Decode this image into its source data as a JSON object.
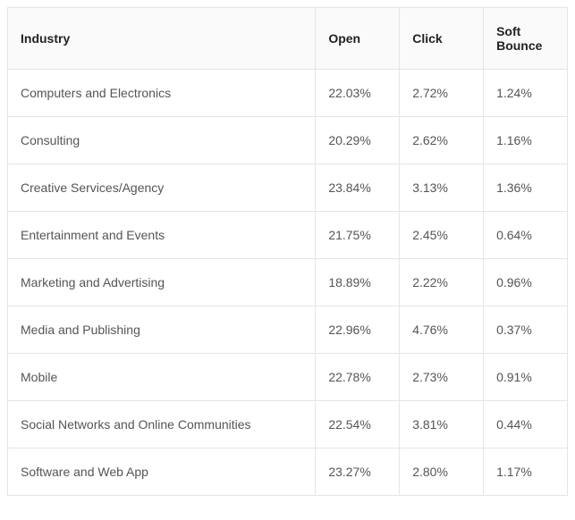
{
  "table": {
    "columns": [
      "Industry",
      "Open",
      "Click",
      "Soft Bounce"
    ],
    "rows": [
      [
        "Computers and Electronics",
        "22.03%",
        "2.72%",
        "1.24%"
      ],
      [
        "Consulting",
        "20.29%",
        "2.62%",
        "1.16%"
      ],
      [
        "Creative Services/Agency",
        "23.84%",
        "3.13%",
        "1.36%"
      ],
      [
        "Entertainment and Events",
        "21.75%",
        "2.45%",
        "0.64%"
      ],
      [
        "Marketing and Advertising",
        "18.89%",
        "2.22%",
        "0.96%"
      ],
      [
        "Media and Publishing",
        "22.96%",
        "4.76%",
        "0.37%"
      ],
      [
        "Mobile",
        "22.78%",
        "2.73%",
        "0.91%"
      ],
      [
        "Social Networks and Online Communities",
        "22.54%",
        "3.81%",
        "0.44%"
      ],
      [
        "Software and Web App",
        "23.27%",
        "2.80%",
        "1.17%"
      ]
    ],
    "header_bg": "#fafafa",
    "border_color": "#e5e5e5",
    "header_text_color": "#222222",
    "cell_text_color": "#555555",
    "font_size": 14,
    "column_widths_pct": [
      55,
      15,
      15,
      15
    ]
  }
}
